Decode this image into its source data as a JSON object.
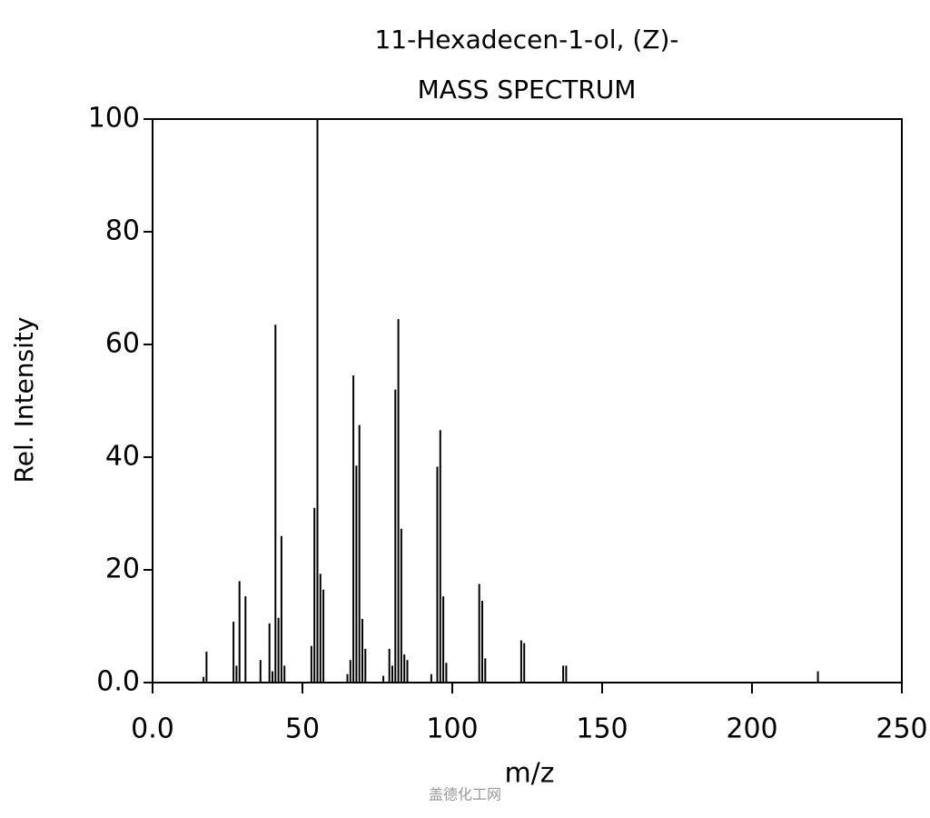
{
  "chart_data": {
    "type": "stem",
    "title": "11-Hexadecen-1-ol, (Z)-",
    "subtitle": "MASS SPECTRUM",
    "x_label": "m/z",
    "y_label": "Rel. Intensity",
    "watermark": "盖德化工网",
    "color": "#000000",
    "x": [
      17,
      18,
      27,
      28,
      29,
      31,
      36,
      39,
      40,
      41,
      42,
      43,
      44,
      53,
      54,
      55,
      56,
      57,
      65,
      66,
      67,
      68,
      69,
      70,
      71,
      77,
      79,
      80,
      81,
      82,
      83,
      84,
      85,
      93,
      95,
      96,
      97,
      98,
      109,
      110,
      111,
      123,
      124,
      137,
      138,
      222
    ],
    "values": [
      1.0,
      5.5,
      10.8,
      3,
      18,
      15.3,
      4,
      10.5,
      2,
      63.5,
      11.5,
      26,
      3,
      6.5,
      31,
      100,
      19.3,
      16.5,
      1.5,
      4,
      54.5,
      38.5,
      45.7,
      11.3,
      6,
      1.2,
      6,
      3,
      52,
      64.5,
      27.3,
      5,
      4,
      1.5,
      38.3,
      44.8,
      15.3,
      3.5,
      17.5,
      14.5,
      4.3,
      7.5,
      7,
      3,
      3,
      2
    ],
    "xlim": [
      0,
      250
    ],
    "ylim": [
      0,
      100
    ],
    "xticks": [
      {
        "value": 0,
        "label": "0.0"
      },
      50,
      100,
      150,
      200,
      250
    ],
    "yticks": [
      {
        "value": 0,
        "label": "0.0"
      },
      20,
      40,
      60,
      80,
      100
    ]
  }
}
